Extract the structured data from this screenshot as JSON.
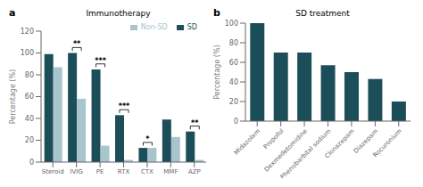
{
  "chart_data": [
    {
      "type": "bar",
      "panel_label": "a",
      "title": "Immunotherapy",
      "categories": [
        "Steroid",
        "IVIG",
        "PE",
        "RTX",
        "CTX",
        "MMF",
        "AZP"
      ],
      "series": [
        {
          "name": "SD",
          "color": "#1c4e5a",
          "values": [
            99,
            100,
            85,
            43,
            13,
            39,
            28
          ]
        },
        {
          "name": "Non-SD",
          "color": "#a8c4cc",
          "values": [
            87,
            58,
            15,
            2,
            13,
            23,
            2
          ]
        }
      ],
      "ylabel": "Percentage (%)",
      "ylim": [
        0,
        120
      ],
      "yticks": [
        0,
        20,
        40,
        60,
        80,
        100,
        120
      ],
      "legend": "upper right",
      "annotations": [
        {
          "category": "IVIG",
          "text": "**"
        },
        {
          "category": "PE",
          "text": "***"
        },
        {
          "category": "RTX",
          "text": "***"
        },
        {
          "category": "CTX",
          "text": "*"
        },
        {
          "category": "AZP",
          "text": "**"
        }
      ]
    },
    {
      "type": "bar",
      "panel_label": "b",
      "title": "SD treatment",
      "categories": [
        "Midazolam",
        "Propofol",
        "Dexmedetomidine",
        "Phenobarbital sodium",
        "Clonazepam",
        "Diazepam",
        "Rocuronium"
      ],
      "values": [
        100,
        70,
        70,
        57,
        50,
        43,
        20
      ],
      "color": "#1c4e5a",
      "ylabel": "Percentage (%)",
      "ylim": [
        0,
        100
      ],
      "yticks": [
        0,
        20,
        40,
        60,
        80,
        100
      ]
    }
  ]
}
